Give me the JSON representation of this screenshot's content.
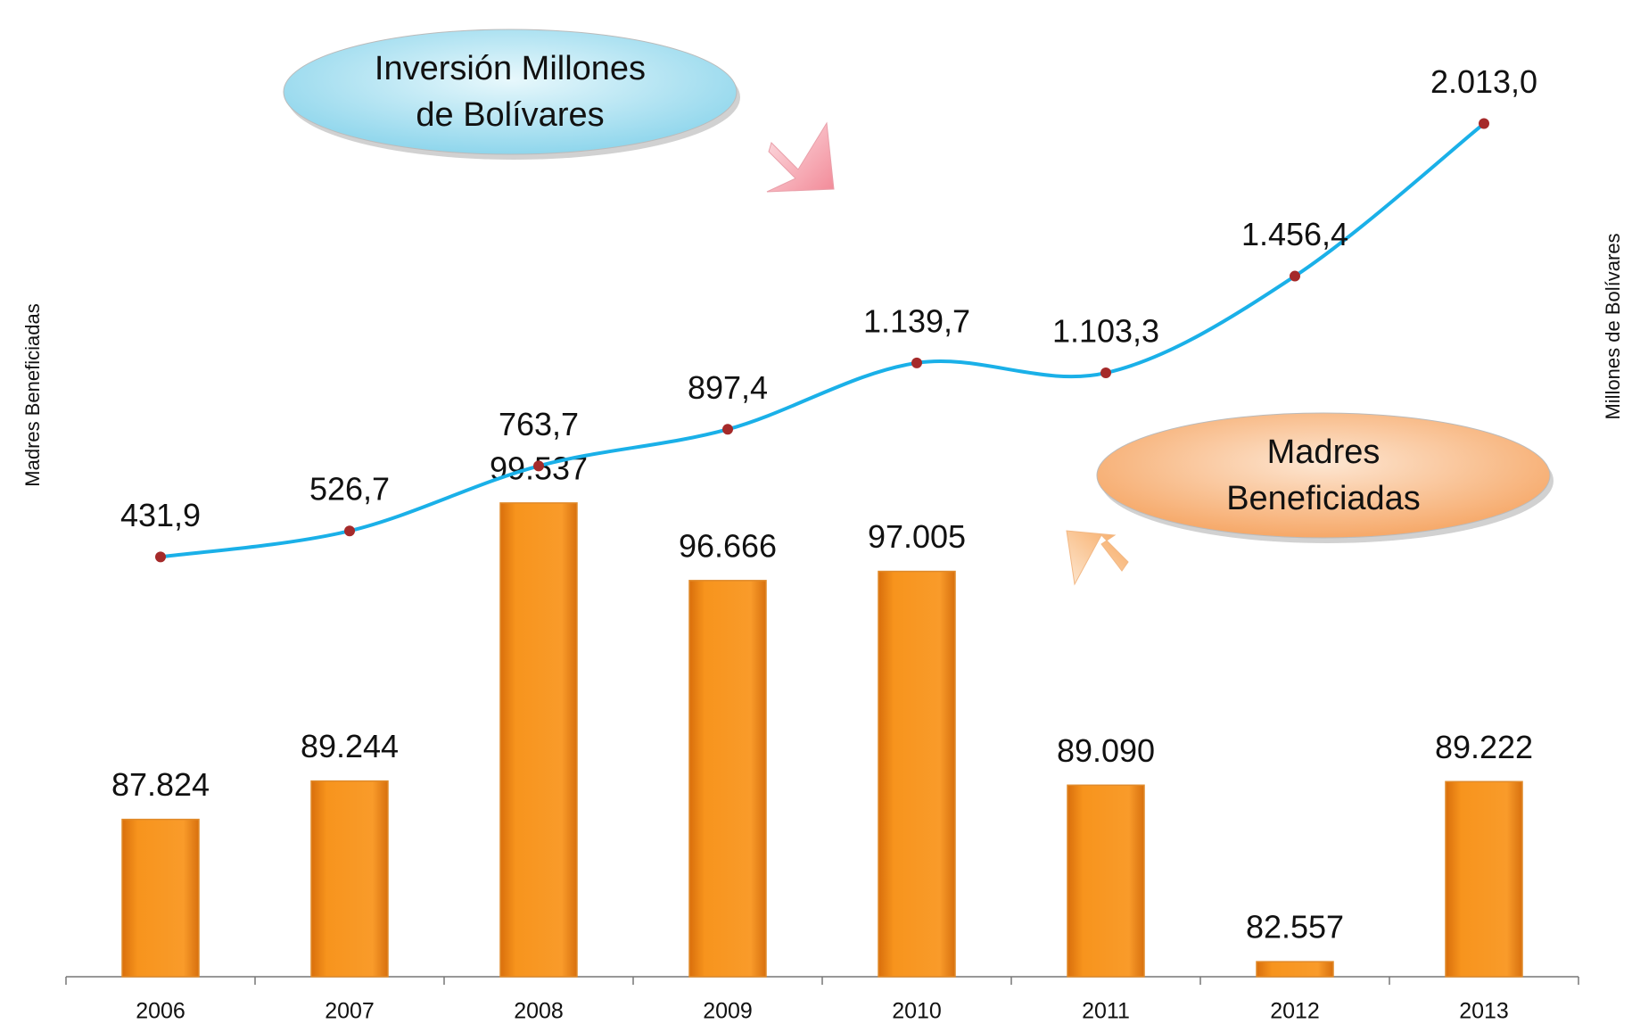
{
  "chart_data": {
    "type": "bar-line",
    "categories": [
      "2006",
      "2007",
      "2008",
      "2009",
      "2010",
      "2011",
      "2012",
      "2013"
    ],
    "ylabel": "Madres Beneficiadas",
    "y2label": "Millones de Bolívares",
    "ylim": [
      82000,
      117000
    ],
    "y2lim": [
      -1100,
      2350
    ],
    "series": [
      {
        "name": "Madres Beneficiadas",
        "type": "bar",
        "color": "#f7941d",
        "values": [
          87824,
          89244,
          99537,
          96666,
          97005,
          89090,
          82557,
          89222
        ],
        "value_labels": [
          "87.824",
          "89.244",
          "99.537",
          "96.666",
          "97.005",
          "89.090",
          "82.557",
          "89.222"
        ]
      },
      {
        "name": "Inversión Millones de Bolívares",
        "type": "line",
        "axis": "y2",
        "color": "#1ab0e8",
        "marker_color": "#a52a2a",
        "values": [
          431.9,
          526.7,
          763.7,
          897.4,
          1139.7,
          1103.3,
          1456.4,
          2013.0
        ],
        "value_labels": [
          "431,9",
          "526,7",
          "763,7",
          "897,4",
          "1.139,7",
          "1.103,3",
          "1.456,4",
          "2.013,0"
        ]
      }
    ],
    "annotations": [
      {
        "lines": [
          "Inversión Millones",
          "de Bolívares"
        ],
        "color": "#bfeaf5"
      },
      {
        "lines": [
          "Madres",
          "Beneficiadas"
        ],
        "color": "#fbc79a"
      }
    ]
  }
}
